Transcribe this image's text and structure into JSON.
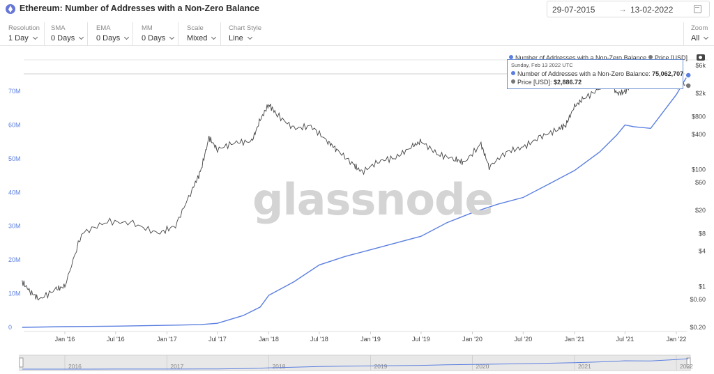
{
  "header": {
    "title": "Ethereum: Number of Addresses with a Non-Zero Balance",
    "date_from": "29-07-2015",
    "date_arrow": "→",
    "date_to": "13-02-2022"
  },
  "controls": [
    {
      "label": "Resolution",
      "value": "1 Day"
    },
    {
      "label": "SMA",
      "value": "0 Days"
    },
    {
      "label": "EMA",
      "value": "0 Days"
    },
    {
      "label": "MM",
      "value": "0 Days"
    },
    {
      "label": "Scale",
      "value": "Mixed"
    },
    {
      "label": "Chart Style",
      "value": "Line"
    }
  ],
  "zoom": {
    "label": "Zoom",
    "value": "All"
  },
  "watermark": "glassnode",
  "legend": {
    "addresses": "Number of Addresses with a Non-Zero Balance",
    "price": "Price [USD]"
  },
  "tooltip": {
    "date": "Sunday, Feb 13 2022 UTC",
    "addresses_label": "Number of Addresses with a Non-Zero Balance:",
    "addresses_value": "75,062,707",
    "price_label": "Price [USD]:",
    "price_value": "$2,886.72"
  },
  "colors": {
    "addresses": "#5b7fe0",
    "price": "#444444",
    "tooltip_border": "#6b8fcf"
  },
  "chart_data": {
    "type": "line",
    "x_ticks": [
      "Jan '16",
      "Jul '16",
      "Jan '17",
      "Jul '17",
      "Jan '18",
      "Jul '18",
      "Jan '19",
      "Jul '19",
      "Jan '20",
      "Jul '20",
      "Jan '21",
      "Jul '21",
      "Jan '22"
    ],
    "y_left_ticks": [
      "0",
      "10M",
      "20M",
      "30M",
      "40M",
      "50M",
      "60M",
      "70M"
    ],
    "y_left_values": [
      0,
      10000000,
      20000000,
      30000000,
      40000000,
      50000000,
      60000000,
      70000000
    ],
    "y_right_ticks": [
      "$0.20",
      "$0.60",
      "$1",
      "$4",
      "$8",
      "$20",
      "$60",
      "$100",
      "$400",
      "$800",
      "$2k",
      "$6k"
    ],
    "y_right_values": [
      0.2,
      0.6,
      1,
      4,
      8,
      20,
      60,
      100,
      400,
      800,
      2000,
      6000
    ],
    "y_left_scale": "linear",
    "y_right_scale": "log",
    "navigator_years": [
      "2016",
      "2017",
      "2018",
      "2019",
      "2020",
      "2021",
      "2022"
    ],
    "series": [
      {
        "name": "Number of Addresses with a Non-Zero Balance",
        "axis": "left",
        "x": [
          "2015-08",
          "2016-01",
          "2016-07",
          "2017-01",
          "2017-05",
          "2017-07",
          "2017-10",
          "2017-12",
          "2018-01",
          "2018-04",
          "2018-07",
          "2018-10",
          "2019-01",
          "2019-04",
          "2019-07",
          "2019-10",
          "2020-01",
          "2020-04",
          "2020-07",
          "2020-10",
          "2021-01",
          "2021-04",
          "2021-06",
          "2021-07",
          "2021-08",
          "2021-10",
          "2022-01",
          "2022-02"
        ],
        "values": [
          0,
          200000,
          350000,
          600000,
          800000,
          1200000,
          3500000,
          6000000,
          9500000,
          13500000,
          18500000,
          21000000,
          23000000,
          25000000,
          27000000,
          31000000,
          34000000,
          36500000,
          38500000,
          42500000,
          46500000,
          52000000,
          57000000,
          60000000,
          59500000,
          59000000,
          69000000,
          75062707
        ]
      },
      {
        "name": "Price [USD]",
        "axis": "right",
        "x": [
          "2015-08",
          "2015-09",
          "2015-10",
          "2015-12",
          "2016-01",
          "2016-03",
          "2016-06",
          "2016-09",
          "2016-12",
          "2017-02",
          "2017-04",
          "2017-05",
          "2017-06",
          "2017-07",
          "2017-09",
          "2017-11",
          "2017-12",
          "2018-01",
          "2018-02",
          "2018-04",
          "2018-06",
          "2018-08",
          "2018-09",
          "2018-11",
          "2018-12",
          "2019-02",
          "2019-04",
          "2019-06",
          "2019-07",
          "2019-09",
          "2019-11",
          "2019-12",
          "2020-02",
          "2020-03",
          "2020-05",
          "2020-07",
          "2020-09",
          "2020-11",
          "2020-12",
          "2021-01",
          "2021-02",
          "2021-04",
          "2021-05",
          "2021-06",
          "2021-07",
          "2021-08",
          "2021-10",
          "2021-11",
          "2022-01",
          "2022-02"
        ],
        "values": [
          1.2,
          0.8,
          0.6,
          0.9,
          1.0,
          8.0,
          13,
          12,
          8.0,
          11,
          45,
          90,
          350,
          220,
          290,
          300,
          700,
          1300,
          850,
          500,
          550,
          300,
          220,
          120,
          90,
          140,
          160,
          250,
          300,
          180,
          150,
          130,
          270,
          110,
          200,
          240,
          360,
          480,
          580,
          1200,
          1600,
          2400,
          3900,
          2000,
          2100,
          3200,
          3600,
          4700,
          2600,
          2887
        ]
      }
    ]
  }
}
